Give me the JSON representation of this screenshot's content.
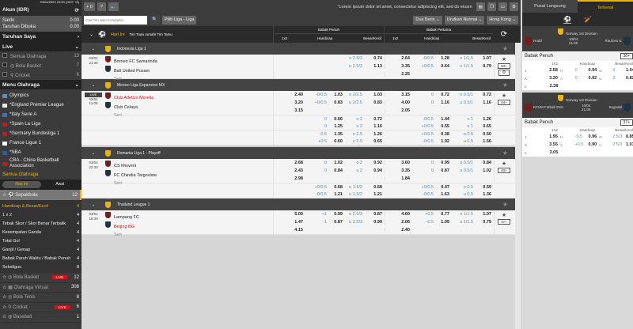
{
  "sidebar": {
    "datetime": "03/04/2023 10:53 (GMT +8)",
    "account": "Akun (IDR)",
    "balance_label": "Saldo",
    "balance": "0.00",
    "open_bets_label": "Taruhan Dibuka",
    "open_bets": "0.00",
    "my_bets": "Taruhan Saya",
    "live": "Live",
    "live_items": [
      {
        "label": "Semua Olahraga",
        "count": "13"
      },
      {
        "label": "Bola Basket",
        "count": "7"
      },
      {
        "label": "Cricket",
        "count": "6"
      }
    ],
    "menu": "Menu Olahraga",
    "menu_items": [
      "Olympics",
      "*England Premier League",
      "*Italy Serie A",
      "*Spain La Liga",
      "*Germany Bundesliga 1",
      "France Ligue 1",
      "*NBA",
      "CBA - China Basketball Association"
    ],
    "all_sports": "Semua Olahraga",
    "tabs": [
      "Hari Ini",
      "Awal"
    ],
    "soccer": {
      "label": "Sepakbola",
      "count": "12"
    },
    "soccer_sub": [
      {
        "label": "Handicap & Besar/Kecil",
        "count": "4"
      },
      {
        "label": "1 x 2",
        "count": "4"
      },
      {
        "label": "Tebak Skor / Skor Benar Terbalik",
        "count": "4"
      },
      {
        "label": "Kesempatan Ganda",
        "count": "4"
      },
      {
        "label": "Total Gol",
        "count": "4"
      },
      {
        "label": "Ganjil / Genap",
        "count": "4"
      },
      {
        "label": "Babak Paruh Waktu / Babak Penuh",
        "count": "4"
      },
      {
        "label": "Sekaligus",
        "count": "8"
      }
    ],
    "sports": [
      {
        "label": "Bola Basket",
        "live": "LIVE",
        "count": "12"
      },
      {
        "label": "Olahraga Virtual",
        "live": "",
        "count": "308"
      },
      {
        "label": "Bola Tenis",
        "live": "",
        "count": "8"
      },
      {
        "label": "Cricket",
        "live": "LIVE",
        "count": "6"
      },
      {
        "label": "Baseball",
        "live": "",
        "count": "1"
      }
    ]
  },
  "toolbar": {
    "bet_count": "+ 0",
    "help": "?",
    "marquee": "\"Lorem ipsum dolor sit amet, consectetur adipiscing elit, sed do eiusm",
    "search_placeholder": "Cari Tim atau Kompetisi",
    "league_button": "Pilih Liga - Liga",
    "view": "Dua Baris",
    "sort": "Urutkan Normal",
    "odds_type": "Hong Kong"
  },
  "header": {
    "today": "Hari Ini",
    "teams": "Tim Tuan rumah/ Tim Tamu",
    "full": "Babak Penuh",
    "half": "Babak Pertama",
    "cols": [
      "1x2",
      "Handicap",
      "Besar/Kecil"
    ]
  },
  "matches": [
    {
      "league": "Indonesia Liga 1",
      "live": "",
      "date": "03/04",
      "time": "21:30",
      "home": "Borneo FC Samarinda",
      "away": "Bali United Pusam",
      "draw": "Seri",
      "home_red": false,
      "away_red": false,
      "more": "53+",
      "lines": [
        [
          "",
          "",
          "",
          "o 2.5/3",
          "0.74",
          "2.64",
          "-0/0.5",
          "1.28",
          "o 1/1.5",
          "1.07"
        ],
        [
          "",
          "",
          "",
          "u 2.5/3",
          "1.13",
          "3.35",
          "+0/0.5",
          "0.64",
          "u 1/1.5",
          "0.79"
        ],
        [
          "",
          "",
          "",
          "",
          "",
          "2.25",
          "",
          "",
          "",
          ""
        ]
      ],
      "extra": []
    },
    {
      "league": "Mexico Liga Expansion MX",
      "live": "LIVE",
      "date": "03/04",
      "time": "11:05",
      "home": "Club Atletico Morelia",
      "away": "Club Celaya",
      "draw": "Seri",
      "home_red": true,
      "away_red": false,
      "more": "44+",
      "lines": [
        [
          "2.40",
          "-0/0.5",
          "1.03",
          "o 2/2.5",
          "1.03",
          "3.15",
          "0",
          "0.72",
          "o 0.5/1",
          "0.72"
        ],
        [
          "3.20",
          "+0/0.5",
          "0.83",
          "u 2/2.5",
          "0.83",
          "4.00",
          "0",
          "1.16",
          "u 0.5/1",
          "1.16"
        ],
        [
          "3.15",
          "",
          "",
          "",
          "",
          "2.05",
          "",
          "",
          "",
          ""
        ]
      ],
      "extra": [
        [
          [
            "",
            "0",
            "0.66",
            "o 2",
            "0.72",
            "",
            "-0/0.5",
            "1.44",
            "o 1",
            "1.26"
          ],
          [
            "",
            "0",
            "1.25",
            "u 2",
            "1.16",
            "",
            "+0/0.5",
            "0.55",
            "u 1",
            "0.65"
          ]
        ],
        [
          [
            "",
            "-0.5",
            "1.35",
            "o 2.5",
            "1.26",
            "",
            "+0/0.5",
            "0.38",
            "o 0.5",
            "0.50"
          ],
          [
            "",
            "+0.5",
            "0.60",
            "u 2.5",
            "0.65",
            "",
            "-0/0.5",
            "1.92",
            "u 0.5",
            "1.56"
          ]
        ]
      ]
    },
    {
      "league": "Romania Liga 1 - Playoff",
      "live": "",
      "date": "03/04",
      "time": "22:30",
      "home": "CS Mioveni",
      "away": "FC Chindia Targoviste",
      "draw": "Seri",
      "home_red": false,
      "away_red": false,
      "more": "40+",
      "lines": [
        [
          "2.68",
          "0",
          "1.02",
          "o 2",
          "0.92",
          "3.60",
          "0",
          "0.99",
          "o 0.5/1",
          "0.84"
        ],
        [
          "2.43",
          "0",
          "0.84",
          "u 2",
          "0.94",
          "3.35",
          "0",
          "0.87",
          "u 0.5/1",
          "1.02"
        ],
        [
          "2.98",
          "",
          "",
          "",
          "",
          "1.84",
          "",
          "",
          "",
          ""
        ]
      ],
      "extra": [
        [
          [
            "",
            "+0/0.5",
            "0.68",
            "o 1.5/2",
            "0.68",
            "",
            "+0/0.5",
            "0.47",
            "o 0.5",
            "0.59"
          ],
          [
            "",
            "-0/0.5",
            "1.21",
            "u 1.5/2",
            "1.21",
            "",
            "-0/0.5",
            "1.63",
            "u 0.5",
            "1.36"
          ]
        ]
      ]
    },
    {
      "league": "Thailand League 1",
      "live": "",
      "date": "03/04",
      "time": "19:30",
      "home": "Lampang FC",
      "away": "Beijing BG",
      "draw": "Seri",
      "home_red": false,
      "away_red": true,
      "more": "37+",
      "lines": [
        [
          "5.00",
          "+1",
          "0.99",
          "o 2.5/3",
          "0.87",
          "4.60",
          "+0.5",
          "0.77",
          "o 1/1.5",
          "1.07"
        ],
        [
          "1.47",
          "-1",
          "0.87",
          "u 2.5/3",
          "0.99",
          "2.06",
          "-0.5",
          "1.09",
          "u 1/1.5",
          "0.79"
        ],
        [
          "4.15",
          "",
          "",
          "",
          "",
          "2.40",
          "",
          "",
          "",
          ""
        ]
      ],
      "extra": []
    }
  ],
  "right": {
    "tabs": [
      "Pusat Langsung",
      "Terkenal"
    ],
    "cards": [
      {
        "league": "Norway 1st Division",
        "home": "Hodd",
        "date": "10/04",
        "time": "21:00",
        "away": "Raufoss IL",
        "market": "Babak Penuh",
        "more": "38+",
        "cols": [
          "1X2",
          "Handicap",
          "Besar/Kecil"
        ],
        "rows": [
          [
            "1",
            "2.58",
            "H",
            "0",
            "0.94",
            "O",
            "3",
            "1.04"
          ],
          [
            "X",
            "3.20",
            "A",
            "0",
            "0.92",
            "U",
            "3",
            "0.82"
          ],
          [
            "2",
            "2.38",
            "",
            "",
            "",
            "",
            "",
            ""
          ]
        ]
      },
      {
        "league": "Norway 1st Division",
        "home": "KFUM Fotball Oslo",
        "date": "10/04",
        "time": "21:00",
        "away": "Sogndal",
        "market": "Babak Penuh",
        "more": "37+",
        "cols": [
          "1X2",
          "Handicap",
          "Besar/Kecil"
        ],
        "rows": [
          [
            "1",
            "1.95",
            "H",
            "-0.5",
            "0.96",
            "O",
            "2.5/3",
            "0.85"
          ],
          [
            "X",
            "3.55",
            "A",
            "+0.5",
            "0.90",
            "U",
            "2.5/3",
            "1.01"
          ],
          [
            "2",
            "3.05",
            "",
            "",
            "",
            "",
            "",
            ""
          ]
        ]
      }
    ]
  },
  "colors": {
    "accent": "#f0b400",
    "live": "#c8161d",
    "dark": "#3b3b3b",
    "handicap_line": "#5a8fb8"
  }
}
